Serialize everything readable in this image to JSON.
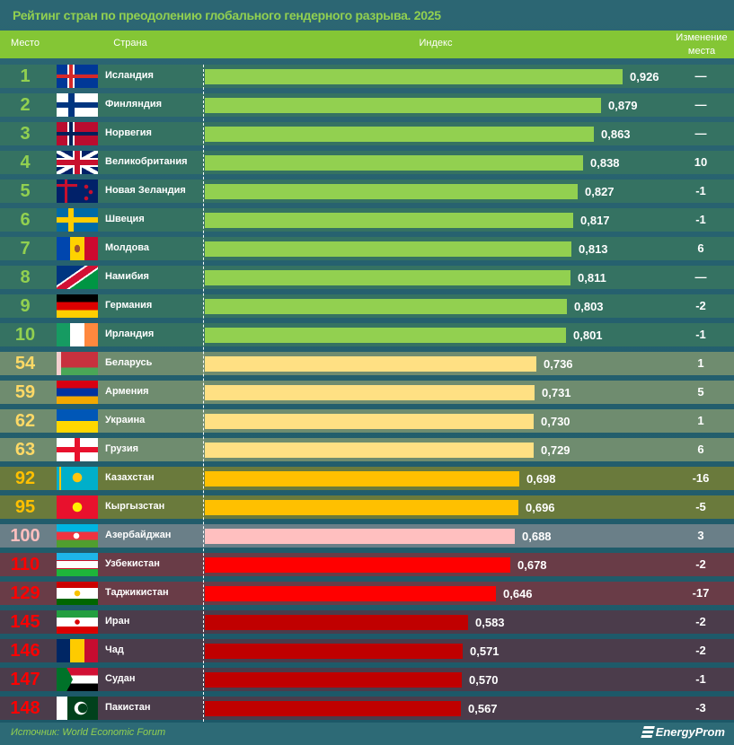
{
  "title": "Рейтинг стран по преодолению глобального гендерного разрыва. 2025",
  "header": {
    "rank": "Место",
    "country": "Страна",
    "index": "Индекс",
    "change_line1": "Изменение",
    "change_line2": "места"
  },
  "footer": {
    "source": "Источник: World Economic Forum",
    "logo": "EnergyProm"
  },
  "tiers": {
    "top": {
      "row": "#357262",
      "bar": "#92d050",
      "rank": "#92d050"
    },
    "mid": {
      "row": "#6f8c6f",
      "bar": "#ffe083",
      "rank": "#ffd966"
    },
    "kz": {
      "row": "#6a7a3c",
      "bar": "#ffc000",
      "rank": "#ffc000"
    },
    "az": {
      "row": "#6a7f88",
      "bar": "#ffbfbf",
      "rank": "#ffbfbf"
    },
    "cis": {
      "row": "#693c47",
      "bar": "#ff0000",
      "rank": "#ff0000"
    },
    "low": {
      "row": "#4b3c4b",
      "bar": "#c00000",
      "rank": "#ff0000"
    }
  },
  "chart_data": {
    "type": "bar",
    "orientation": "horizontal",
    "title": "Рейтинг стран по преодолению глобального гендерного разрыва. 2025",
    "xlim": [
      0,
      1
    ],
    "rows": [
      {
        "rank": "1",
        "country": "Исландия",
        "value": 0.926,
        "label": "0,926",
        "change": "—",
        "tier": "top",
        "flag": "is"
      },
      {
        "rank": "2",
        "country": "Финляндия",
        "value": 0.879,
        "label": "0,879",
        "change": "—",
        "tier": "top",
        "flag": "fi"
      },
      {
        "rank": "3",
        "country": "Норвегия",
        "value": 0.863,
        "label": "0,863",
        "change": "—",
        "tier": "top",
        "flag": "no"
      },
      {
        "rank": "4",
        "country": "Великобритания",
        "value": 0.838,
        "label": "0,838",
        "change": "10",
        "tier": "top",
        "flag": "gb"
      },
      {
        "rank": "5",
        "country": "Новая Зеландия",
        "value": 0.827,
        "label": "0,827",
        "change": "-1",
        "tier": "top",
        "flag": "nz"
      },
      {
        "rank": "6",
        "country": "Швеция",
        "value": 0.817,
        "label": "0,817",
        "change": "-1",
        "tier": "top",
        "flag": "se"
      },
      {
        "rank": "7",
        "country": " Молдова",
        "value": 0.813,
        "label": "0,813",
        "change": "6",
        "tier": "top",
        "flag": "md"
      },
      {
        "rank": "8",
        "country": "Намибия",
        "value": 0.811,
        "label": "0,811",
        "change": "—",
        "tier": "top",
        "flag": "na"
      },
      {
        "rank": "9",
        "country": "Германия",
        "value": 0.803,
        "label": "0,803",
        "change": "-2",
        "tier": "top",
        "flag": "de"
      },
      {
        "rank": "10",
        "country": "Ирландия",
        "value": 0.801,
        "label": "0,801",
        "change": "-1",
        "tier": "top",
        "flag": "ie"
      },
      {
        "rank": "54",
        "country": "Беларусь",
        "value": 0.736,
        "label": "0,736",
        "change": "1",
        "tier": "mid",
        "flag": "by"
      },
      {
        "rank": "59",
        "country": "Армения",
        "value": 0.731,
        "label": "0,731",
        "change": "5",
        "tier": "mid",
        "flag": "am"
      },
      {
        "rank": "62",
        "country": "Украина",
        "value": 0.73,
        "label": "0,730",
        "change": "1",
        "tier": "mid",
        "flag": "ua"
      },
      {
        "rank": "63",
        "country": "Грузия",
        "value": 0.729,
        "label": "0,729",
        "change": "6",
        "tier": "mid",
        "flag": "ge"
      },
      {
        "rank": "92",
        "country": "Казахстан",
        "value": 0.698,
        "label": "0,698",
        "change": "-16",
        "tier": "kz",
        "flag": "kz"
      },
      {
        "rank": "95",
        "country": "Кыргызстан",
        "value": 0.696,
        "label": "0,696",
        "change": "-5",
        "tier": "kz",
        "flag": "kg"
      },
      {
        "rank": "100",
        "country": "Азербайджан",
        "value": 0.688,
        "label": "0,688",
        "change": "3",
        "tier": "az",
        "flag": "az"
      },
      {
        "rank": "110",
        "country": "Узбекистан",
        "value": 0.678,
        "label": "0,678",
        "change": "-2",
        "tier": "cis",
        "flag": "uz"
      },
      {
        "rank": "129",
        "country": "Таджикистан",
        "value": 0.646,
        "label": "0,646",
        "change": "-17",
        "tier": "cis",
        "flag": "tj"
      },
      {
        "rank": "145",
        "country": "Иран",
        "value": 0.583,
        "label": "0,583",
        "change": "-2",
        "tier": "low",
        "flag": "ir"
      },
      {
        "rank": "146",
        "country": "Чад",
        "value": 0.571,
        "label": "0,571",
        "change": "-2",
        "tier": "low",
        "flag": "td"
      },
      {
        "rank": "147",
        "country": "Судан",
        "value": 0.57,
        "label": "0,570",
        "change": "-1",
        "tier": "low",
        "flag": "sd"
      },
      {
        "rank": "148",
        "country": "Пакистан",
        "value": 0.567,
        "label": "0,567",
        "change": "-3",
        "tier": "low",
        "flag": "pk"
      }
    ]
  }
}
